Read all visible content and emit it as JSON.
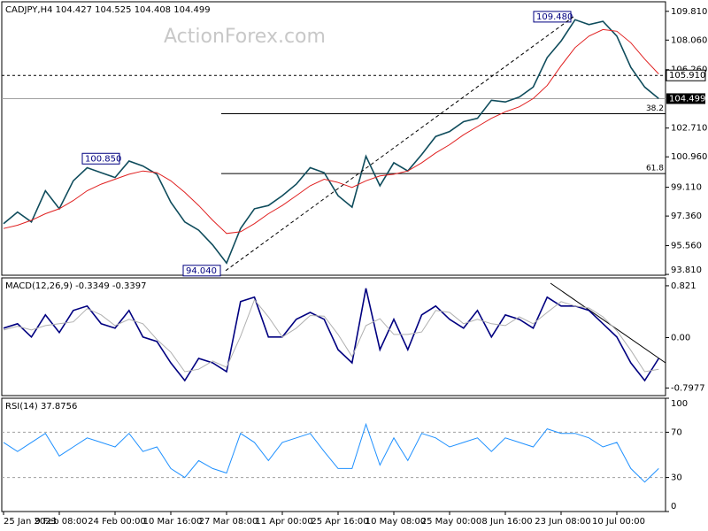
{
  "chart_data": [
    {
      "type": "line",
      "title": "CADJPY,H4 104.427 104.525 104.408 104.499",
      "watermark": "ActionForex.com",
      "categories": [
        "25 Jan 2023",
        null,
        null,
        null,
        "9 Feb 08:00",
        null,
        null,
        null,
        "24 Feb 00:00",
        null,
        null,
        null,
        "10 Mar 16:00",
        null,
        null,
        null,
        "27 Mar 08:00",
        null,
        null,
        null,
        "11 Apr 00:00",
        null,
        null,
        null,
        "25 Apr 16:00",
        null,
        null,
        null,
        "10 May 08:00",
        null,
        null,
        null,
        "25 May 00:00",
        null,
        null,
        null,
        "8 Jun 16:00",
        null,
        null,
        null,
        "23 Jun 08:00",
        null,
        null,
        null,
        "10 Jul 00:00",
        null,
        null,
        null
      ],
      "series": [
        {
          "color": "#0f4c5c",
          "values": [
            96.9,
            97.6,
            97.0,
            98.9,
            97.8,
            99.5,
            100.3,
            100.0,
            99.7,
            100.7,
            100.4,
            99.9,
            98.2,
            97.0,
            96.5,
            95.6,
            94.5,
            96.6,
            97.8,
            98.0,
            98.6,
            99.3,
            100.3,
            100.0,
            98.6,
            97.9,
            101.0,
            99.2,
            100.6,
            100.1,
            101.1,
            102.2,
            102.5,
            103.1,
            103.3,
            104.4,
            104.3,
            104.6,
            105.2,
            107.0,
            108.0,
            109.3,
            109.0,
            109.2,
            108.3,
            106.4,
            105.2,
            104.5
          ]
        },
        {
          "color": "#e02020",
          "values": [
            96.6,
            96.8,
            97.1,
            97.5,
            97.8,
            98.3,
            98.9,
            99.3,
            99.6,
            99.9,
            100.1,
            100.0,
            99.5,
            98.8,
            98.0,
            97.1,
            96.3,
            96.4,
            96.9,
            97.5,
            98.0,
            98.6,
            99.2,
            99.6,
            99.4,
            99.1,
            99.5,
            99.8,
            99.9,
            100.1,
            100.6,
            101.2,
            101.7,
            102.3,
            102.8,
            103.3,
            103.7,
            104.0,
            104.5,
            105.3,
            106.5,
            107.6,
            108.3,
            108.7,
            108.6,
            107.9,
            106.9,
            106.0
          ]
        }
      ],
      "ylim": [
        93.76,
        110.39
      ],
      "yticks": [
        {
          "value": 109.81,
          "label": "109.810"
        },
        {
          "value": 108.06,
          "label": "108.060"
        },
        {
          "value": 106.26,
          "label": "106.260"
        },
        {
          "value": 102.71,
          "label": "102.710"
        },
        {
          "value": 100.96,
          "label": "100.960"
        },
        {
          "value": 99.11,
          "label": "99.110"
        },
        {
          "value": 97.36,
          "label": "97.360"
        },
        {
          "value": 95.56,
          "label": "95.560"
        },
        {
          "value": 93.81,
          "label": "93.810"
        }
      ],
      "levels": [
        {
          "value": 105.91,
          "label": "105.910"
        }
      ],
      "current_price": 104.499,
      "fibonacci": [
        {
          "ratio": 38.2,
          "price": 103.58
        },
        {
          "ratio": 61.8,
          "price": 99.94
        }
      ],
      "annotations": [
        {
          "value": 100.85,
          "label": "100.850"
        },
        {
          "value": 94.04,
          "label": "94.040"
        },
        {
          "value": 109.48,
          "label": "109.480"
        }
      ]
    },
    {
      "type": "line",
      "title": "MACD(12,26,9) -0.3349 -0.3397",
      "series": [
        {
          "color": "#000080",
          "values": [
            0.15,
            0.22,
            0.01,
            0.36,
            0.08,
            0.43,
            0.5,
            0.22,
            0.15,
            0.43,
            0.01,
            -0.06,
            -0.4,
            -0.68,
            -0.33,
            -0.4,
            -0.54,
            0.57,
            0.64,
            0.01,
            0.01,
            0.29,
            0.4,
            0.29,
            -0.19,
            -0.4,
            0.78,
            -0.19,
            0.29,
            -0.19,
            0.36,
            0.5,
            0.29,
            0.15,
            0.43,
            0.01,
            0.36,
            0.29,
            0.15,
            0.64,
            0.5,
            0.5,
            0.43,
            0.22,
            0.01,
            -0.4,
            -0.68,
            -0.33
          ]
        },
        {
          "color": "#b0b0b0",
          "values": [
            0.12,
            0.18,
            0.12,
            0.19,
            0.22,
            0.25,
            0.46,
            0.36,
            0.19,
            0.29,
            0.22,
            -0.03,
            -0.23,
            -0.54,
            -0.5,
            -0.37,
            -0.47,
            0.02,
            0.6,
            0.33,
            0.01,
            0.15,
            0.35,
            0.34,
            0.05,
            -0.3,
            0.19,
            0.3,
            0.05,
            0.05,
            0.09,
            0.43,
            0.4,
            0.22,
            0.29,
            0.22,
            0.19,
            0.33,
            0.22,
            0.4,
            0.57,
            0.5,
            0.47,
            0.33,
            0.11,
            -0.2,
            -0.54,
            -0.5
          ]
        }
      ],
      "ylim": [
        -0.918,
        0.946
      ],
      "yticks": [
        0.821,
        {
          "value": 0,
          "label": "0.00"
        },
        -0.7977
      ]
    },
    {
      "type": "line",
      "title": "RSI(14) 37.8756",
      "series": [
        {
          "color": "#1e90ff",
          "values": [
            61,
            53,
            61,
            69,
            49,
            57,
            65,
            61,
            57,
            69,
            53,
            57,
            38,
            30,
            45,
            38,
            34,
            69,
            61,
            45,
            61,
            65,
            69,
            53,
            38,
            38,
            77,
            41,
            65,
            45,
            69,
            65,
            57,
            61,
            65,
            53,
            65,
            61,
            57,
            73,
            69,
            69,
            65,
            57,
            61,
            38,
            26,
            38
          ]
        }
      ],
      "ylim": [
        0,
        100
      ],
      "yticks": [
        100,
        70,
        30,
        0
      ]
    }
  ]
}
